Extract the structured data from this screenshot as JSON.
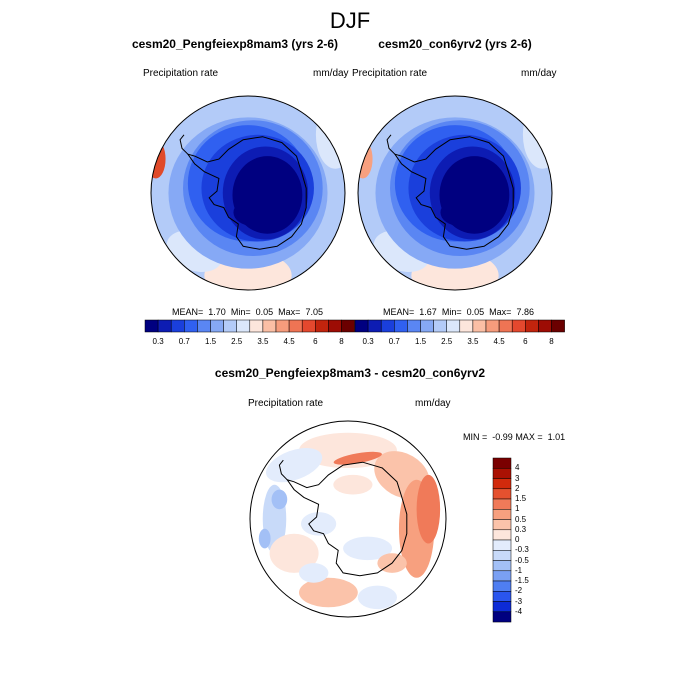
{
  "main_title": "DJF",
  "colors": {
    "scale_positive": [
      "#fee9df",
      "#fdc3ab",
      "#fb9b76",
      "#f76b46",
      "#ec3c22",
      "#d22114",
      "#b41309",
      "#8c0606",
      "#6a0000"
    ],
    "full_palette": [
      "#000080",
      "#0d1cb3",
      "#1a3fdc",
      "#3060f0",
      "#5a86f3",
      "#86a9f5",
      "#b3cbf8",
      "#dbe7fb",
      "#fde6dc",
      "#fbbfa5",
      "#f69c7c",
      "#ef7454",
      "#e4482e",
      "#c2240d",
      "#9d0c04",
      "#6b0000"
    ],
    "diff_palette": [
      "#000080",
      "#0d2bd6",
      "#2a55ee",
      "#4f7ef1",
      "#7aa0f3",
      "#a3c0f6",
      "#c8daf9",
      "#e3ecfc",
      "#fde6dc",
      "#fbc3aa",
      "#f7a07f",
      "#f07a59",
      "#e5512f",
      "#d22a0c",
      "#aa1103",
      "#7a0000"
    ]
  },
  "chart_data": [
    {
      "type": "heatmap",
      "title": "cesm20_Pengfeiexp8mam3 (yrs 2-6)",
      "left_label": "Precipitation rate",
      "right_label": "mm/day",
      "stats": {
        "mean_label": "MEAN=",
        "mean": "1.70",
        "min_label": "Min=",
        "min": "0.05",
        "max_label": "Max=",
        "max": "7.05"
      },
      "colorbar_labels": [
        "0.3",
        "0.7",
        "1.5",
        "2.5",
        "3.5",
        "4.5",
        "6",
        "8"
      ]
    },
    {
      "type": "heatmap",
      "title": "cesm20_con6yrv2 (yrs 2-6)",
      "left_label": "Precipitation rate",
      "right_label": "mm/day",
      "stats": {
        "mean_label": "MEAN=",
        "mean": "1.67",
        "min_label": "Min=",
        "min": "0.05",
        "max_label": "Max=",
        "max": "7.86"
      },
      "colorbar_labels": [
        "0.3",
        "0.7",
        "1.5",
        "2.5",
        "3.5",
        "4.5",
        "6",
        "8"
      ]
    },
    {
      "type": "heatmap",
      "title": "cesm20_Pengfeiexp8mam3 - cesm20_con6yrv2",
      "left_label": "Precipitation rate",
      "right_label": "mm/day",
      "stats": {
        "min_label": "MIN =",
        "min": "-0.99",
        "max_label": "MAX =",
        "max": "1.01"
      },
      "colorbar_labels": [
        "4",
        "3",
        "2",
        "1.5",
        "1",
        "0.5",
        "0.3",
        "0",
        "-0.3",
        "-0.5",
        "-1",
        "-1.5",
        "-2",
        "-3",
        "-4"
      ]
    }
  ]
}
